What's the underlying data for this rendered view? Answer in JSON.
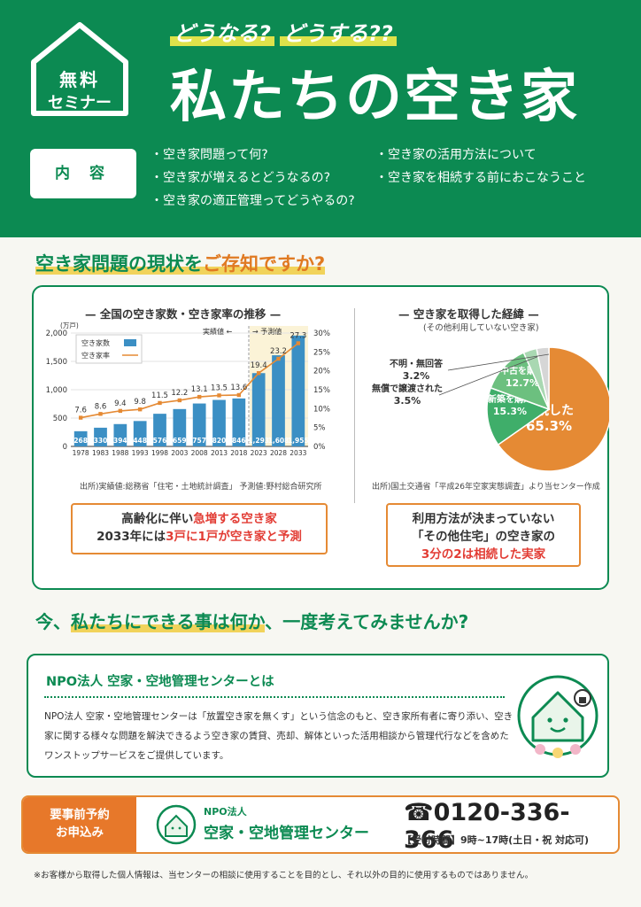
{
  "header": {
    "badge": [
      "無料",
      "セミナー"
    ],
    "kicker": [
      "どうなる?",
      "どうする??"
    ],
    "title": "私たちの空き家",
    "content_label": "内 容",
    "topics_left": [
      "・空き家問題って何?",
      "・空き家が増えるとどうなるの?",
      "・空き家の適正管理ってどうやるの?"
    ],
    "topics_right": [
      "・空き家の活用方法について",
      "・空き家を相続する前におこなうこと"
    ]
  },
  "section1": {
    "prefix": "空き家問題の現状を",
    "accent": "ご存知ですか?"
  },
  "chart_left": {
    "title": "— 全国の空き家数・空き家率の推移 —",
    "unit": "(万戸)",
    "legend_bar": "空き家数",
    "legend_line": "空き家率",
    "actual_label": "実績値",
    "forecast_label": "予測値",
    "source": "出所)実績値:総務省「住宅・土地統計調査」 予測値:野村総合研究所",
    "callout_lines": [
      {
        "a": "高齢化に伴い",
        "b": "急増する空き家",
        "c": ""
      },
      {
        "a": "2033年には",
        "b": "3戸に1戸が空き家と予測",
        "c": ""
      }
    ]
  },
  "chart_right": {
    "title": "— 空き家を取得した経緯 —",
    "subtitle": "(その他利用していない空き家)",
    "source": "出所)国土交通省「平成26年空家実態調査」より当センター作成",
    "callout_lines": [
      "利用方法が決まっていない",
      "「その他住宅」の空き家の",
      "3分の2は相続した実家"
    ]
  },
  "chart_data": [
    {
      "type": "bar",
      "title": "— 全国の空き家数・空き家率の推移 —",
      "categories": [
        "1978",
        "1983",
        "1988",
        "1993",
        "1998",
        "2003",
        "2008",
        "2013",
        "2018",
        "2023",
        "2028",
        "2033"
      ],
      "series": [
        {
          "name": "空き家数",
          "values": [
            268,
            330,
            394,
            448,
            576,
            659,
            757,
            820,
            846,
            1293,
            1608,
            1955
          ],
          "axis": "left"
        },
        {
          "name": "空き家率",
          "values": [
            7.6,
            8.6,
            9.4,
            9.8,
            11.5,
            12.2,
            13.1,
            13.5,
            13.6,
            19.4,
            23.2,
            27.3
          ],
          "axis": "right",
          "type": "line"
        }
      ],
      "ylim": [
        0,
        2000
      ],
      "ylabel_ticks": [
        "0",
        "500",
        "1,000",
        "1,500",
        "2,000"
      ],
      "y2lim": [
        0,
        30
      ],
      "y2_ticks": [
        "0%",
        "5%",
        "10%",
        "15%",
        "20%",
        "25%",
        "30%"
      ],
      "forecast_from": "2023",
      "colors": {
        "bar": "#3b8fc4",
        "line": "#e58a34"
      }
    },
    {
      "type": "pie",
      "title": "— 空き家を取得した経緯 —",
      "slices": [
        {
          "label": "相続した",
          "value": 65.3,
          "color": "#e58a34"
        },
        {
          "label": "新築を購入",
          "value": 15.3,
          "color": "#3fae6a"
        },
        {
          "label": "中古を購入",
          "value": 12.7,
          "color": "#6cc07f"
        },
        {
          "label": "無償で譲渡された",
          "value": 3.5,
          "color": "#a9d8b2"
        },
        {
          "label": "不明・無回答",
          "value": 3.2,
          "color": "#d6d6d6"
        }
      ]
    }
  ],
  "section2": {
    "prefix": "今、",
    "accent": "私たちにできる事は何か",
    "suffix": "、一度考えてみませんか?"
  },
  "npo": {
    "title": "NPO法人 空家・空地管理センターとは",
    "body": "NPO法人 空家・空地管理センターは「放置空き家を無くす」という信念のもと、空き家所有者に寄り添い、空き家に関する様々な問題を解決できるよう空き家の賃貸、売却、解体といった活用相談から管理代行などを含めたワンストップサービスをご提供しています。"
  },
  "contact": {
    "left": [
      "要事前予約",
      "お申込み"
    ],
    "org_small": "NPO法人",
    "org_name": "空家・空地管理センター",
    "phone": "☎0120-336-366",
    "hours": "【受付時間】9時~17時(土日・祝 対応可)"
  },
  "footnote": "※お客様から取得した個人情報は、当センターの相談に使用することを目的とし、それ以外の目的に使用するものではありません。"
}
